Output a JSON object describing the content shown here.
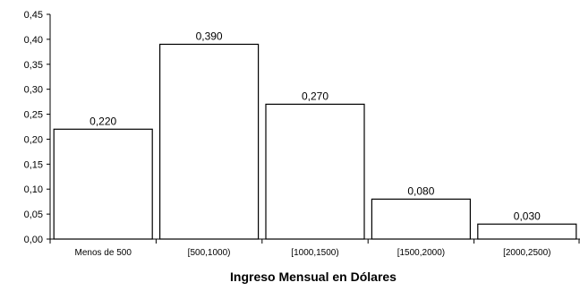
{
  "chart_data": {
    "type": "bar",
    "title": "",
    "xlabel": "Ingreso Mensual en Dólares",
    "ylabel": "",
    "categories": [
      "Menos de 500",
      "[500,1000)",
      "[1000,1500)",
      "[1500,2000)",
      "[2000,2500)"
    ],
    "values": [
      0.22,
      0.39,
      0.27,
      0.08,
      0.03
    ],
    "data_labels": [
      "0,220",
      "0,390",
      "0,270",
      "0,080",
      "0,030"
    ],
    "y_ticks": [
      0,
      0.05,
      0.1,
      0.15,
      0.2,
      0.25,
      0.3,
      0.35,
      0.4,
      0.45
    ],
    "y_tick_labels": [
      "0,00",
      "0,05",
      "0,10",
      "0,15",
      "0,20",
      "0,25",
      "0,30",
      "0,35",
      "0,40",
      "0,45"
    ],
    "ylim": [
      0,
      0.45
    ],
    "grid": false,
    "legend": "none",
    "colors": {
      "bar_fill": "#ffffff",
      "bar_stroke": "#000000",
      "axis": "#000000",
      "text": "#000000"
    }
  }
}
